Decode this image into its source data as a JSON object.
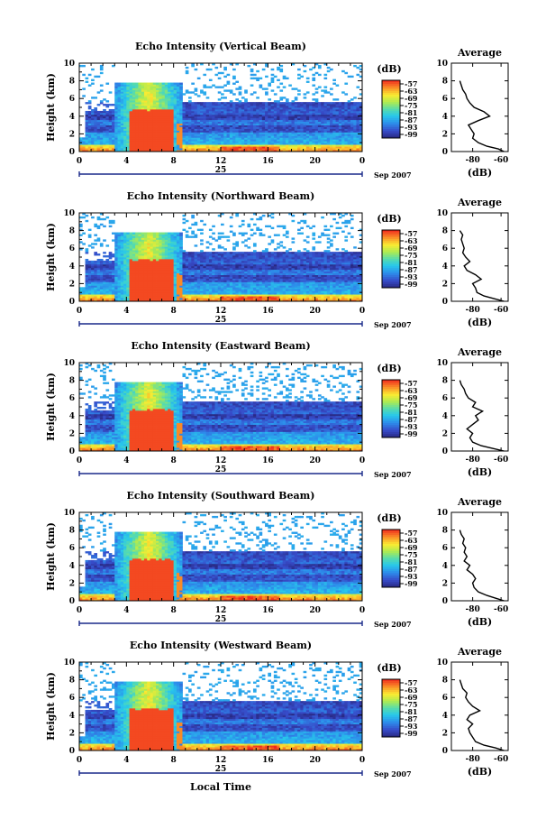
{
  "figure": {
    "xlabel": "Local Time",
    "date_label": "Sep 2007",
    "cbar_unit": "(dB)",
    "avg_title": "Average",
    "avg_xlabel": "(dB)"
  },
  "chart_data": [
    {
      "type": "heatmap",
      "title": "Echo Intensity (Vertical Beam)",
      "ylabel": "Height (km)",
      "xlim": [
        0,
        24
      ],
      "ylim": [
        0,
        10
      ],
      "x_ticks": [
        "0",
        "4",
        "8",
        "12",
        "16",
        "20",
        "0"
      ],
      "x_tick_values": [
        0,
        4,
        8,
        12,
        16,
        20,
        24
      ],
      "y_ticks": [
        "0",
        "2",
        "4",
        "6",
        "8",
        "10"
      ],
      "y_tick_values": [
        0,
        2,
        4,
        6,
        8,
        10
      ],
      "day_label": "25",
      "colorbar_ticks": [
        "-57",
        "-63",
        "-69",
        "-75",
        "-81",
        "-87",
        "-93",
        "-99"
      ],
      "colorbar_range": [
        -102,
        -54
      ],
      "average": {
        "xlabel": "(dB)",
        "xlim": [
          -95,
          -55
        ],
        "x_ticks": [
          "-80",
          "-60"
        ],
        "x_tick_values": [
          -80,
          -60
        ],
        "y_ticks": [
          "0",
          "2",
          "4",
          "6",
          "8",
          "10"
        ],
        "height_km": [
          0.0,
          0.3,
          0.6,
          1.0,
          1.5,
          2.0,
          2.5,
          3.0,
          3.5,
          4.0,
          4.5,
          5.0,
          5.5,
          6.0,
          6.5,
          7.0,
          7.5,
          8.0
        ],
        "values_db": [
          -58,
          -62,
          -70,
          -76,
          -80,
          -79,
          -81,
          -83,
          -76,
          -68,
          -72,
          -79,
          -82,
          -84,
          -85,
          -87,
          -88,
          -89
        ]
      }
    },
    {
      "type": "heatmap",
      "title": "Echo Intensity (Northward Beam)",
      "ylabel": "Height (km)",
      "xlim": [
        0,
        24
      ],
      "ylim": [
        0,
        10
      ],
      "x_ticks": [
        "0",
        "4",
        "8",
        "12",
        "16",
        "20",
        "0"
      ],
      "x_tick_values": [
        0,
        4,
        8,
        12,
        16,
        20,
        24
      ],
      "y_ticks": [
        "0",
        "2",
        "4",
        "6",
        "8",
        "10"
      ],
      "y_tick_values": [
        0,
        2,
        4,
        6,
        8,
        10
      ],
      "day_label": "25",
      "colorbar_ticks": [
        "-57",
        "-63",
        "-69",
        "-75",
        "-81",
        "-87",
        "-93",
        "-99"
      ],
      "colorbar_range": [
        -102,
        -54
      ],
      "average": {
        "xlabel": "(dB)",
        "xlim": [
          -95,
          -55
        ],
        "x_ticks": [
          "-80",
          "-60"
        ],
        "x_tick_values": [
          -80,
          -60
        ],
        "y_ticks": [
          "0",
          "2",
          "4",
          "6",
          "8",
          "10"
        ],
        "height_km": [
          0.0,
          0.3,
          0.6,
          1.0,
          1.5,
          2.0,
          2.5,
          3.0,
          3.5,
          4.0,
          4.5,
          5.0,
          5.5,
          6.0,
          6.5,
          7.0,
          7.5,
          8.0
        ],
        "values_db": [
          -58,
          -65,
          -72,
          -77,
          -78,
          -80,
          -74,
          -78,
          -84,
          -86,
          -82,
          -85,
          -87,
          -86,
          -87,
          -88,
          -87,
          -89
        ]
      }
    },
    {
      "type": "heatmap",
      "title": "Echo Intensity (Eastward Beam)",
      "ylabel": "Height (km)",
      "xlim": [
        0,
        24
      ],
      "ylim": [
        0,
        10
      ],
      "x_ticks": [
        "0",
        "4",
        "8",
        "12",
        "16",
        "20",
        "0"
      ],
      "x_tick_values": [
        0,
        4,
        8,
        12,
        16,
        20,
        24
      ],
      "y_ticks": [
        "0",
        "2",
        "4",
        "6",
        "8",
        "10"
      ],
      "y_tick_values": [
        0,
        2,
        4,
        6,
        8,
        10
      ],
      "day_label": "25",
      "colorbar_ticks": [
        "-57",
        "-63",
        "-69",
        "-75",
        "-81",
        "-87",
        "-93",
        "-99"
      ],
      "colorbar_range": [
        -102,
        -54
      ],
      "average": {
        "xlabel": "(dB)",
        "xlim": [
          -95,
          -55
        ],
        "x_ticks": [
          "-80",
          "-60"
        ],
        "x_tick_values": [
          -80,
          -60
        ],
        "y_ticks": [
          "0",
          "2",
          "4",
          "6",
          "8",
          "10"
        ],
        "height_km": [
          0.0,
          0.3,
          0.6,
          1.0,
          1.5,
          2.0,
          2.5,
          3.0,
          3.5,
          4.0,
          4.5,
          5.0,
          5.5,
          6.0,
          6.5,
          7.0,
          7.5,
          8.0
        ],
        "values_db": [
          -58,
          -66,
          -74,
          -80,
          -82,
          -80,
          -84,
          -80,
          -76,
          -78,
          -73,
          -80,
          -78,
          -83,
          -85,
          -86,
          -88,
          -89
        ]
      }
    },
    {
      "type": "heatmap",
      "title": "Echo Intensity (Southward Beam)",
      "ylabel": "Height (km)",
      "xlim": [
        0,
        24
      ],
      "ylim": [
        0,
        10
      ],
      "x_ticks": [
        "0",
        "4",
        "8",
        "12",
        "16",
        "20",
        "0"
      ],
      "x_tick_values": [
        0,
        4,
        8,
        12,
        16,
        20,
        24
      ],
      "y_ticks": [
        "0",
        "2",
        "4",
        "6",
        "8",
        "10"
      ],
      "y_tick_values": [
        0,
        2,
        4,
        6,
        8,
        10
      ],
      "day_label": "25",
      "colorbar_ticks": [
        "-57",
        "-63",
        "-69",
        "-75",
        "-81",
        "-87",
        "-93",
        "-99"
      ],
      "colorbar_range": [
        -102,
        -54
      ],
      "average": {
        "xlabel": "(dB)",
        "xlim": [
          -95,
          -55
        ],
        "x_ticks": [
          "-80",
          "-60"
        ],
        "x_tick_values": [
          -80,
          -60
        ],
        "y_ticks": [
          "0",
          "2",
          "4",
          "6",
          "8",
          "10"
        ],
        "height_km": [
          0.0,
          0.3,
          0.6,
          1.0,
          1.5,
          2.0,
          2.5,
          3.0,
          3.5,
          4.0,
          4.5,
          5.0,
          5.5,
          6.0,
          6.5,
          7.0,
          7.5,
          8.0
        ],
        "values_db": [
          -58,
          -64,
          -70,
          -76,
          -79,
          -80,
          -78,
          -80,
          -84,
          -82,
          -86,
          -84,
          -86,
          -85,
          -87,
          -86,
          -88,
          -89
        ]
      }
    },
    {
      "type": "heatmap",
      "title": "Echo Intensity (Westward Beam)",
      "ylabel": "Height (km)",
      "xlim": [
        0,
        24
      ],
      "ylim": [
        0,
        10
      ],
      "x_ticks": [
        "0",
        "4",
        "8",
        "12",
        "16",
        "20",
        "0"
      ],
      "x_tick_values": [
        0,
        4,
        8,
        12,
        16,
        20,
        24
      ],
      "y_ticks": [
        "0",
        "2",
        "4",
        "6",
        "8",
        "10"
      ],
      "y_tick_values": [
        0,
        2,
        4,
        6,
        8,
        10
      ],
      "day_label": "25",
      "colorbar_ticks": [
        "-57",
        "-63",
        "-69",
        "-75",
        "-81",
        "-87",
        "-93",
        "-99"
      ],
      "colorbar_range": [
        -102,
        -54
      ],
      "average": {
        "xlabel": "(dB)",
        "xlim": [
          -95,
          -55
        ],
        "x_ticks": [
          "-80",
          "-60"
        ],
        "x_tick_values": [
          -80,
          -60
        ],
        "y_ticks": [
          "0",
          "2",
          "4",
          "6",
          "8",
          "10"
        ],
        "height_km": [
          0.0,
          0.3,
          0.6,
          1.0,
          1.5,
          2.0,
          2.5,
          3.0,
          3.5,
          4.0,
          4.5,
          5.0,
          5.5,
          6.0,
          6.5,
          7.0,
          7.5,
          8.0
        ],
        "values_db": [
          -58,
          -64,
          -72,
          -78,
          -80,
          -82,
          -83,
          -80,
          -84,
          -82,
          -75,
          -80,
          -83,
          -85,
          -84,
          -87,
          -88,
          -89
        ]
      }
    }
  ]
}
